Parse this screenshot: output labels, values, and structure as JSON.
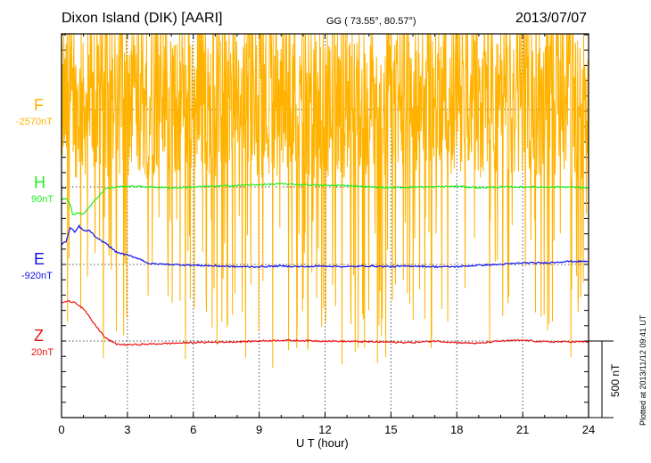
{
  "header": {
    "title": "Dixon Island (DIK)  [AARI]",
    "coords": "GG ( 73.55°,  80.57°)",
    "date": "2013/07/07"
  },
  "footer": {
    "plotted": "Plotted at 2013/11/12 09:41  UT",
    "scale_label": "500 nT"
  },
  "chart_data": {
    "type": "line",
    "title": "Dixon Island (DIK)  [AARI]",
    "xlabel": "U T (hour)",
    "xlim": [
      0,
      24
    ],
    "xticks": [
      "0",
      "3",
      "6",
      "9",
      "12",
      "15",
      "18",
      "21",
      "24"
    ],
    "scale_bar_nT": 500,
    "grid": "dotted at 3-hour intervals and component baselines",
    "series": [
      {
        "name": "F",
        "baseline": "-2570nT",
        "color": "#ffb300",
        "noise_envelope_nT": [
          -1700,
          500
        ],
        "note_points": []
      },
      {
        "name": "H",
        "baseline": "90nT",
        "color": "#22ee22",
        "points": [
          [
            0,
            -80
          ],
          [
            0.2,
            -75
          ],
          [
            0.4,
            -110
          ],
          [
            0.5,
            -180
          ],
          [
            0.8,
            -170
          ],
          [
            1,
            -175
          ],
          [
            1.5,
            -90
          ],
          [
            2,
            -10
          ],
          [
            2.5,
            0
          ],
          [
            3,
            5
          ],
          [
            4,
            0
          ],
          [
            5,
            -5
          ],
          [
            6,
            0
          ],
          [
            7,
            5
          ],
          [
            8,
            10
          ],
          [
            9,
            15
          ],
          [
            10,
            20
          ],
          [
            11,
            15
          ],
          [
            12,
            10
          ],
          [
            13,
            10
          ],
          [
            14,
            0
          ],
          [
            15,
            -5
          ],
          [
            16,
            0
          ],
          [
            17,
            0
          ],
          [
            18,
            5
          ],
          [
            19,
            -5
          ],
          [
            20,
            0
          ],
          [
            21,
            0
          ],
          [
            22,
            0
          ],
          [
            23,
            0
          ],
          [
            24,
            -5
          ]
        ]
      },
      {
        "name": "E",
        "baseline": "-920nT",
        "color": "#1010ee",
        "points": [
          [
            0,
            130
          ],
          [
            0.2,
            150
          ],
          [
            0.4,
            240
          ],
          [
            0.6,
            210
          ],
          [
            0.8,
            250
          ],
          [
            1,
            220
          ],
          [
            1.3,
            220
          ],
          [
            1.6,
            170
          ],
          [
            2,
            140
          ],
          [
            2.5,
            80
          ],
          [
            3,
            60
          ],
          [
            3.5,
            40
          ],
          [
            4,
            5
          ],
          [
            5,
            0
          ],
          [
            6,
            -5
          ],
          [
            7,
            -10
          ],
          [
            8,
            -15
          ],
          [
            9,
            -15
          ],
          [
            10,
            -10
          ],
          [
            11,
            -15
          ],
          [
            12,
            -10
          ],
          [
            13,
            -15
          ],
          [
            14,
            -10
          ],
          [
            15,
            -15
          ],
          [
            16,
            -10
          ],
          [
            17,
            -15
          ],
          [
            18,
            -15
          ],
          [
            19,
            -5
          ],
          [
            20,
            0
          ],
          [
            21,
            10
          ],
          [
            22,
            10
          ],
          [
            23,
            20
          ],
          [
            24,
            20
          ]
        ]
      },
      {
        "name": "Z",
        "baseline": "20nT",
        "color": "#ee1010",
        "points": [
          [
            0,
            250
          ],
          [
            0.3,
            260
          ],
          [
            0.6,
            255
          ],
          [
            1,
            210
          ],
          [
            1.5,
            110
          ],
          [
            2,
            20
          ],
          [
            2.5,
            -20
          ],
          [
            3,
            -25
          ],
          [
            4,
            -20
          ],
          [
            5,
            -15
          ],
          [
            6,
            -10
          ],
          [
            8,
            -5
          ],
          [
            10,
            5
          ],
          [
            12,
            0
          ],
          [
            14,
            -5
          ],
          [
            16,
            -10
          ],
          [
            17,
            0
          ],
          [
            18,
            -10
          ],
          [
            19,
            -15
          ],
          [
            20,
            0
          ],
          [
            21,
            5
          ],
          [
            22,
            -5
          ],
          [
            24,
            -5
          ]
        ]
      }
    ]
  }
}
